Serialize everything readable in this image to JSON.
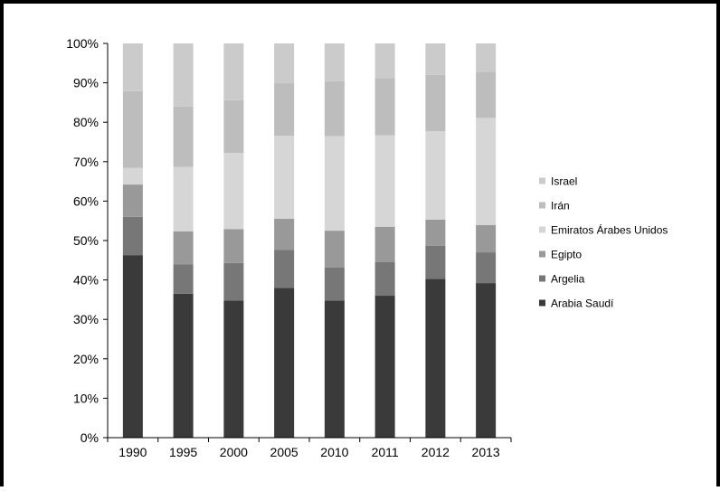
{
  "chart_data": {
    "type": "bar",
    "stacked": true,
    "percent": true,
    "categories": [
      "1990",
      "1995",
      "2000",
      "2005",
      "2010",
      "2011",
      "2012",
      "2013"
    ],
    "y_ticks": [
      "0%",
      "10%",
      "20%",
      "30%",
      "40%",
      "50%",
      "60%",
      "70%",
      "80%",
      "90%",
      "100%"
    ],
    "ylim": [
      0,
      100
    ],
    "legend_position": "right",
    "series": [
      {
        "name": "Arabia Saudí",
        "color": "#3a3a3a",
        "values": [
          46.3,
          36.5,
          34.8,
          38.0,
          34.8,
          36.0,
          40.3,
          39.2
        ]
      },
      {
        "name": "Argelia",
        "color": "#777777",
        "values": [
          9.7,
          7.5,
          9.5,
          9.6,
          8.4,
          8.5,
          8.4,
          7.8
        ]
      },
      {
        "name": "Egipto",
        "color": "#999999",
        "values": [
          8.2,
          8.3,
          8.6,
          7.9,
          9.3,
          9.0,
          6.6,
          6.9
        ]
      },
      {
        "name": "Emiratos Árabes Unidos",
        "color": "#d6d6d6",
        "values": [
          4.2,
          16.4,
          19.3,
          21.1,
          24.0,
          23.2,
          22.4,
          27.2
        ]
      },
      {
        "name": "Irán",
        "color": "#bdbdbd",
        "values": [
          19.5,
          15.3,
          13.4,
          13.3,
          13.9,
          14.5,
          14.3,
          11.7
        ]
      },
      {
        "name": "Israel",
        "color": "#cbcbcb",
        "values": [
          12.1,
          16.0,
          14.4,
          10.1,
          9.6,
          8.8,
          8.0,
          7.2
        ]
      }
    ]
  }
}
